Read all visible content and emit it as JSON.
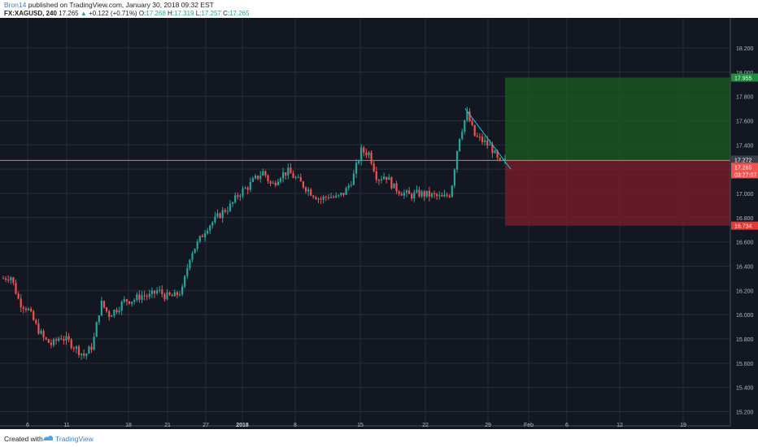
{
  "header": {
    "author": "Bron14",
    "published": "published on TradingView.com, January 30, 2018 09:32 EST",
    "symbol": "FX:XAGUSD, 240",
    "last": "17.265",
    "arrow": "▲",
    "change": "+0.122 (+0.71%)",
    "o_label": "O:",
    "o_value": "17.268",
    "h_label": "H:",
    "h_value": "17.319",
    "l_label": "L:",
    "l_value": "17.257",
    "c_label": "C:",
    "c_value": "17.265"
  },
  "footer": {
    "created_with": "Created with",
    "brand": "TradingView"
  },
  "colors": {
    "background": "#131722",
    "grid": "#2a2e39",
    "up": "#26a69a",
    "down": "#ef5350",
    "profit_zone": "#1b5e20",
    "loss_zone": "#7f1d2b",
    "trendline": "#26c6da",
    "hline": "#e57373"
  },
  "chart_data": {
    "type": "candlestick",
    "symbol": "FX:XAGUSD",
    "interval": "240",
    "ylim": [
      15.15,
      18.3
    ],
    "y_ticks": [
      15.2,
      15.4,
      15.6,
      15.8,
      16.0,
      16.2,
      16.4,
      16.6,
      16.8,
      17.0,
      17.2,
      17.4,
      17.6,
      17.8,
      18.0,
      18.2
    ],
    "y_tick_labels": [
      "15.200",
      "15.400",
      "15.600",
      "15.800",
      "16.000",
      "16.200",
      "16.400",
      "16.600",
      "16.800",
      "17.000",
      "17.200",
      "17.400",
      "17.600",
      "17.800",
      "18.000",
      "18.200"
    ],
    "x_ticks": [
      "6",
      "11",
      "18",
      "21",
      "27",
      "2018",
      "8",
      "15",
      "22",
      "29",
      "Feb",
      "6",
      "12",
      "19"
    ],
    "path": [
      [
        4,
        16.3
      ],
      [
        13,
        16.32
      ],
      [
        24,
        16.1
      ],
      [
        34,
        16.05
      ],
      [
        45,
        15.9
      ],
      [
        54,
        15.8
      ],
      [
        64,
        15.75
      ],
      [
        74,
        15.82
      ],
      [
        84,
        15.78
      ],
      [
        94,
        15.72
      ],
      [
        104,
        15.66
      ],
      [
        114,
        15.75
      ],
      [
        124,
        16.1
      ],
      [
        134,
        16.0
      ],
      [
        144,
        16.05
      ],
      [
        154,
        16.12
      ],
      [
        164,
        16.12
      ],
      [
        174,
        16.16
      ],
      [
        184,
        16.15
      ],
      [
        194,
        16.2
      ],
      [
        204,
        16.15
      ],
      [
        214,
        16.15
      ],
      [
        224,
        16.2
      ],
      [
        234,
        16.5
      ],
      [
        244,
        16.6
      ],
      [
        254,
        16.72
      ],
      [
        264,
        16.78
      ],
      [
        274,
        16.85
      ],
      [
        284,
        16.9
      ],
      [
        294,
        17.0
      ],
      [
        304,
        17.05
      ],
      [
        314,
        17.12
      ],
      [
        324,
        17.18
      ],
      [
        334,
        17.06
      ],
      [
        344,
        17.15
      ],
      [
        354,
        17.18
      ],
      [
        364,
        17.12
      ],
      [
        374,
        17.06
      ],
      [
        384,
        17.0
      ],
      [
        394,
        16.95
      ],
      [
        404,
        16.98
      ],
      [
        414,
        16.96
      ],
      [
        424,
        17.01
      ],
      [
        434,
        17.13
      ],
      [
        444,
        17.35
      ],
      [
        454,
        17.33
      ],
      [
        464,
        17.12
      ],
      [
        474,
        17.15
      ],
      [
        484,
        17.05
      ],
      [
        494,
        17.01
      ],
      [
        504,
        16.98
      ],
      [
        514,
        17.0
      ],
      [
        524,
        16.99
      ],
      [
        534,
        16.98
      ],
      [
        544,
        16.96
      ],
      [
        554,
        17.0
      ],
      [
        564,
        17.45
      ],
      [
        574,
        17.66
      ],
      [
        584,
        17.47
      ],
      [
        594,
        17.43
      ],
      [
        604,
        17.38
      ],
      [
        614,
        17.24
      ],
      [
        622,
        17.265
      ]
    ],
    "trendline": {
      "from": [
        572,
        17.7
      ],
      "to": [
        628,
        17.2
      ]
    },
    "horizontal_line": 17.272,
    "position": {
      "entry": 17.272,
      "target": 17.955,
      "stop": 16.734
    },
    "price_labels": [
      {
        "value": "17.955",
        "kind": "target"
      },
      {
        "value": "17.272",
        "kind": "entry"
      },
      {
        "value": "17.265",
        "kind": "last"
      },
      {
        "value": "03:27:07",
        "kind": "countdown"
      },
      {
        "value": "16.734",
        "kind": "stop"
      }
    ]
  }
}
